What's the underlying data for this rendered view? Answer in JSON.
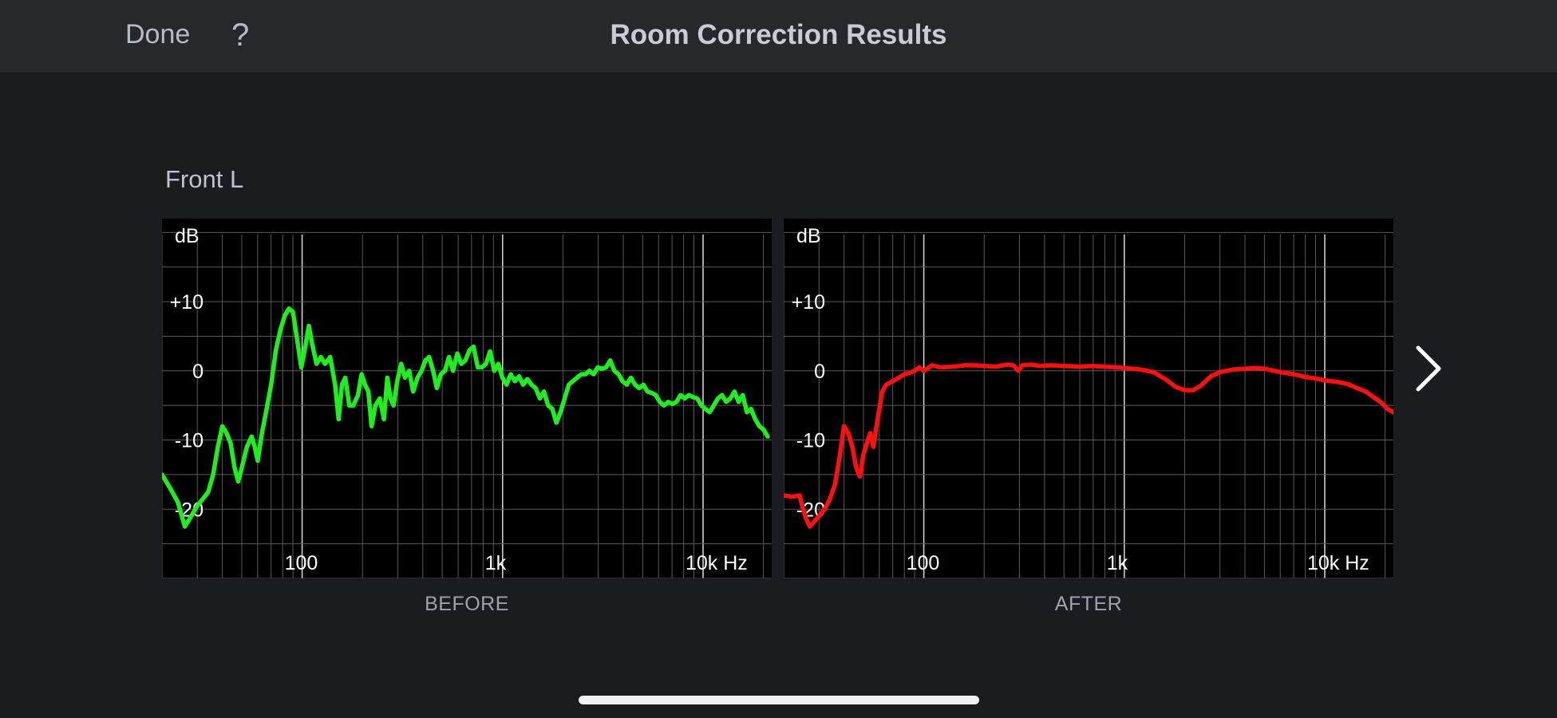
{
  "header": {
    "title": "Room Correction Results",
    "done_label": "Done",
    "help_label": "?"
  },
  "channel": "Front L",
  "nav": {
    "next_icon": "chevron-right-icon"
  },
  "colors": {
    "before_line": "#1ef01e",
    "after_line": "#ff1010",
    "grid_minor": "#5a5a5a",
    "grid_major": "#cfcfcf"
  },
  "chart_data": [
    {
      "type": "line",
      "caption": "BEFORE",
      "ylabel": "dB",
      "xlabel": "Hz",
      "x_scale": "log",
      "xlim": [
        20,
        22000
      ],
      "ylim": [
        -30,
        22
      ],
      "x_ticks": [
        100,
        1000,
        10000
      ],
      "x_tick_labels": [
        "100",
        "1k",
        "10k Hz"
      ],
      "y_ticks": [
        10,
        0,
        -10,
        -20
      ],
      "y_tick_labels": [
        "+10",
        "0",
        "-10",
        "-20"
      ],
      "grid": true,
      "series": [
        {
          "color": "#1ef01e",
          "points": [
            [
              20,
              -15
            ],
            [
              22,
              -17
            ],
            [
              24,
              -19
            ],
            [
              26,
              -22.5
            ],
            [
              28,
              -21
            ],
            [
              30,
              -19.5
            ],
            [
              32,
              -18.5
            ],
            [
              34,
              -17.5
            ],
            [
              36,
              -15
            ],
            [
              38,
              -11
            ],
            [
              40,
              -8
            ],
            [
              42,
              -9
            ],
            [
              44,
              -10.5
            ],
            [
              46,
              -14
            ],
            [
              48,
              -16
            ],
            [
              50,
              -14
            ],
            [
              53,
              -11
            ],
            [
              56,
              -9.5
            ],
            [
              58,
              -11
            ],
            [
              60,
              -13
            ],
            [
              63,
              -9
            ],
            [
              66,
              -6
            ],
            [
              70,
              -2
            ],
            [
              74,
              3
            ],
            [
              78,
              6
            ],
            [
              82,
              8
            ],
            [
              86,
              9
            ],
            [
              90,
              8.5
            ],
            [
              95,
              4
            ],
            [
              99,
              0.5
            ],
            [
              103,
              3
            ],
            [
              108,
              6.5
            ],
            [
              112,
              4
            ],
            [
              118,
              1
            ],
            [
              124,
              2
            ],
            [
              130,
              1
            ],
            [
              138,
              2
            ],
            [
              146,
              -2
            ],
            [
              152,
              -7
            ],
            [
              158,
              -2
            ],
            [
              164,
              -1
            ],
            [
              172,
              -5
            ],
            [
              180,
              -5
            ],
            [
              190,
              -3.5
            ],
            [
              198,
              -0.5
            ],
            [
              206,
              -2
            ],
            [
              214,
              -3
            ],
            [
              222,
              -8
            ],
            [
              232,
              -5
            ],
            [
              244,
              -4
            ],
            [
              256,
              -7
            ],
            [
              266,
              -1
            ],
            [
              276,
              -4
            ],
            [
              286,
              -5
            ],
            [
              298,
              -1.5
            ],
            [
              312,
              1
            ],
            [
              326,
              -1
            ],
            [
              342,
              0
            ],
            [
              358,
              -3
            ],
            [
              376,
              -1
            ],
            [
              394,
              0
            ],
            [
              412,
              1.5
            ],
            [
              430,
              2
            ],
            [
              450,
              0
            ],
            [
              470,
              -2.5
            ],
            [
              492,
              -0.5
            ],
            [
              516,
              0
            ],
            [
              540,
              2
            ],
            [
              566,
              0
            ],
            [
              594,
              2.5
            ],
            [
              622,
              1
            ],
            [
              652,
              1.5
            ],
            [
              684,
              3
            ],
            [
              716,
              3.5
            ],
            [
              752,
              0.5
            ],
            [
              788,
              0.5
            ],
            [
              826,
              1
            ],
            [
              866,
              2.8
            ],
            [
              908,
              0
            ],
            [
              952,
              1
            ],
            [
              998,
              -1
            ],
            [
              1046,
              -2
            ],
            [
              1098,
              -0.5
            ],
            [
              1152,
              -1.5
            ],
            [
              1208,
              -0.8
            ],
            [
              1266,
              -2
            ],
            [
              1328,
              -1.2
            ],
            [
              1394,
              -2
            ],
            [
              1462,
              -2.5
            ],
            [
              1534,
              -4
            ],
            [
              1608,
              -3
            ],
            [
              1686,
              -5
            ],
            [
              1768,
              -5.5
            ],
            [
              1854,
              -7.5
            ],
            [
              1944,
              -6
            ],
            [
              2038,
              -4
            ],
            [
              2138,
              -2
            ],
            [
              2242,
              -1.5
            ],
            [
              2350,
              -1
            ],
            [
              2466,
              -0.5
            ],
            [
              2586,
              -0.5
            ],
            [
              2712,
              0
            ],
            [
              2844,
              -0.5
            ],
            [
              2982,
              0.5
            ],
            [
              3128,
              0.3
            ],
            [
              3280,
              0.5
            ],
            [
              3440,
              1.5
            ],
            [
              3608,
              0
            ],
            [
              3784,
              -0.5
            ],
            [
              3968,
              -1.5
            ],
            [
              4160,
              -2
            ],
            [
              4364,
              -1
            ],
            [
              4576,
              -2
            ],
            [
              4800,
              -2.5
            ],
            [
              5034,
              -2
            ],
            [
              5278,
              -3
            ],
            [
              5536,
              -3.2
            ],
            [
              5806,
              -3.5
            ],
            [
              6088,
              -4.5
            ],
            [
              6386,
              -5
            ],
            [
              6696,
              -4.5
            ],
            [
              7022,
              -4.8
            ],
            [
              7366,
              -4.5
            ],
            [
              7724,
              -3.5
            ],
            [
              8100,
              -4
            ],
            [
              8496,
              -3.5
            ],
            [
              8910,
              -3.8
            ],
            [
              9344,
              -4
            ],
            [
              9800,
              -5
            ],
            [
              10276,
              -5.5
            ],
            [
              10778,
              -6
            ],
            [
              11304,
              -5
            ],
            [
              11854,
              -4
            ],
            [
              12432,
              -3.5
            ],
            [
              13038,
              -4.5
            ],
            [
              13674,
              -4
            ],
            [
              14340,
              -3
            ],
            [
              15040,
              -4.5
            ],
            [
              15774,
              -3.5
            ],
            [
              16542,
              -6
            ],
            [
              17348,
              -5.5
            ],
            [
              18194,
              -7
            ],
            [
              19082,
              -8
            ],
            [
              20012,
              -8.5
            ],
            [
              21000,
              -9.5
            ]
          ]
        }
      ]
    },
    {
      "type": "line",
      "caption": "AFTER",
      "ylabel": "dB",
      "xlabel": "Hz",
      "x_scale": "log",
      "xlim": [
        20,
        22000
      ],
      "ylim": [
        -30,
        22
      ],
      "x_ticks": [
        100,
        1000,
        10000
      ],
      "x_tick_labels": [
        "100",
        "1k",
        "10k Hz"
      ],
      "y_ticks": [
        10,
        0,
        -10,
        -20
      ],
      "y_tick_labels": [
        "+10",
        "0",
        "-10",
        "-20"
      ],
      "grid": true,
      "series": [
        {
          "color": "#ff1010",
          "points": [
            [
              20,
              -18
            ],
            [
              22,
              -18.2
            ],
            [
              24,
              -18
            ],
            [
              25,
              -20
            ],
            [
              26,
              -21.5
            ],
            [
              27,
              -22.5
            ],
            [
              28,
              -22
            ],
            [
              30,
              -21
            ],
            [
              32,
              -20
            ],
            [
              34,
              -18.5
            ],
            [
              36,
              -16.5
            ],
            [
              38,
              -12.5
            ],
            [
              40,
              -8
            ],
            [
              42,
              -9
            ],
            [
              44,
              -11
            ],
            [
              46,
              -14
            ],
            [
              48,
              -15.3
            ],
            [
              50,
              -12
            ],
            [
              52,
              -10.5
            ],
            [
              54,
              -9
            ],
            [
              56,
              -11
            ],
            [
              58,
              -8
            ],
            [
              60,
              -5.5
            ],
            [
              62,
              -3
            ],
            [
              65,
              -2
            ],
            [
              70,
              -1.5
            ],
            [
              75,
              -1
            ],
            [
              80,
              -0.5
            ],
            [
              85,
              -0.3
            ],
            [
              90,
              0
            ],
            [
              95,
              0.5
            ],
            [
              100,
              0
            ],
            [
              110,
              0.8
            ],
            [
              120,
              0.5
            ],
            [
              140,
              0.6
            ],
            [
              160,
              0.8
            ],
            [
              180,
              0.8
            ],
            [
              200,
              0.7
            ],
            [
              230,
              0.6
            ],
            [
              260,
              0.9
            ],
            [
              280,
              0.8
            ],
            [
              295,
              0
            ],
            [
              300,
              0.2
            ],
            [
              310,
              0.8
            ],
            [
              340,
              0.9
            ],
            [
              380,
              0.7
            ],
            [
              430,
              0.8
            ],
            [
              500,
              0.7
            ],
            [
              600,
              0.6
            ],
            [
              700,
              0.7
            ],
            [
              800,
              0.6
            ],
            [
              900,
              0.5
            ],
            [
              1000,
              0.4
            ],
            [
              1200,
              0.2
            ],
            [
              1400,
              -0.2
            ],
            [
              1600,
              -1.2
            ],
            [
              1800,
              -2.3
            ],
            [
              2000,
              -2.8
            ],
            [
              2200,
              -2.8
            ],
            [
              2400,
              -2.2
            ],
            [
              2700,
              -0.8
            ],
            [
              3000,
              -0.2
            ],
            [
              3500,
              0.2
            ],
            [
              4000,
              0.3
            ],
            [
              4500,
              0.4
            ],
            [
              5000,
              0.3
            ],
            [
              6000,
              -0.2
            ],
            [
              7000,
              -0.5
            ],
            [
              8000,
              -0.9
            ],
            [
              9000,
              -1.1
            ],
            [
              10000,
              -1.4
            ],
            [
              11500,
              -1.6
            ],
            [
              13000,
              -1.9
            ],
            [
              14500,
              -2.5
            ],
            [
              16000,
              -3
            ],
            [
              17500,
              -3.8
            ],
            [
              19000,
              -4.5
            ],
            [
              20500,
              -5.5
            ],
            [
              22000,
              -6
            ]
          ]
        }
      ]
    }
  ]
}
